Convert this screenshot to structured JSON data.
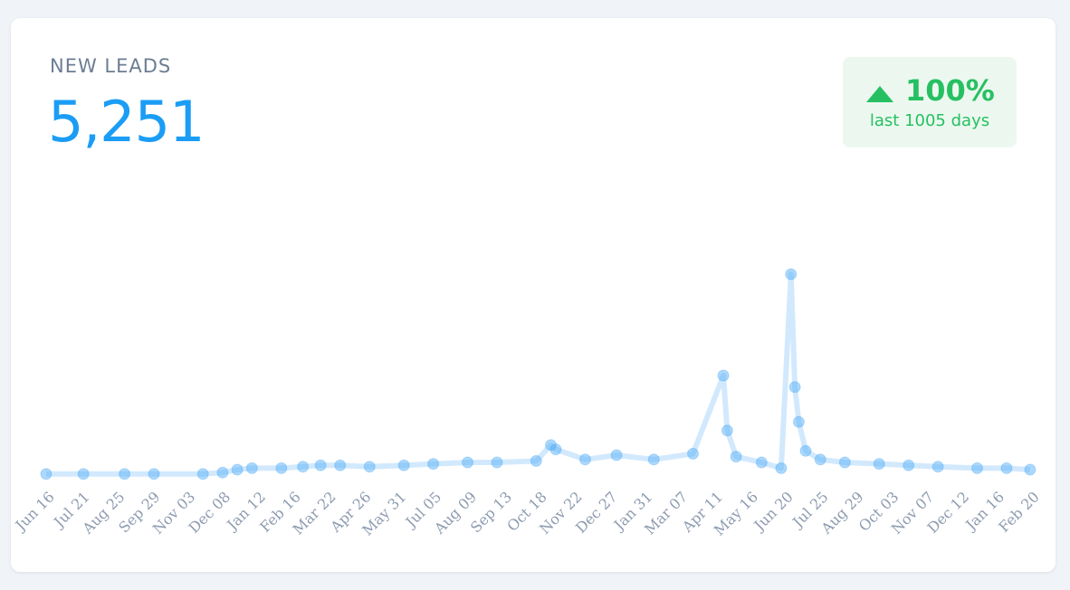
{
  "card": {
    "title": "NEW LEADS",
    "value": "5,251"
  },
  "badge": {
    "percent": "100%",
    "direction": "up",
    "subtitle": "last 1005 days",
    "color": "#26c062",
    "background": "#ecf8ef"
  },
  "colors": {
    "accent": "#1b9df5",
    "point": "#4aa8f7",
    "title": "#6c7d93",
    "tick": "#8d9bb0"
  },
  "chart_data": {
    "type": "scatter",
    "xlabel": "",
    "ylabel": "",
    "series": [
      {
        "values": [
          [
            0,
            2
          ],
          [
            38,
            2
          ],
          [
            80,
            2
          ],
          [
            110,
            2
          ],
          [
            160,
            2
          ],
          [
            180,
            3
          ],
          [
            195,
            5
          ],
          [
            210,
            6
          ],
          [
            240,
            6
          ],
          [
            262,
            7
          ],
          [
            280,
            8
          ],
          [
            300,
            8
          ],
          [
            330,
            7
          ],
          [
            365,
            8
          ],
          [
            395,
            9
          ],
          [
            430,
            10
          ],
          [
            460,
            10
          ],
          [
            500,
            11
          ],
          [
            515,
            22
          ],
          [
            520,
            19
          ],
          [
            550,
            12
          ],
          [
            582,
            15
          ],
          [
            620,
            12
          ],
          [
            660,
            16
          ],
          [
            691,
            70
          ],
          [
            695,
            32
          ],
          [
            704,
            14
          ],
          [
            730,
            10
          ],
          [
            750,
            6
          ],
          [
            760,
            140
          ],
          [
            764,
            62
          ],
          [
            768,
            38
          ],
          [
            775,
            18
          ],
          [
            790,
            12
          ],
          [
            815,
            10
          ],
          [
            850,
            9
          ],
          [
            880,
            8
          ],
          [
            910,
            7
          ],
          [
            950,
            6
          ],
          [
            980,
            6
          ],
          [
            1004,
            5
          ]
        ]
      }
    ],
    "x_ticks": [
      "Jun 16",
      "Jul 21",
      "Aug 25",
      "Sep 29",
      "Nov 03",
      "Dec 08",
      "Jan 12",
      "Feb 16",
      "Mar 22",
      "Apr 26",
      "May 31",
      "Jul 05",
      "Aug 09",
      "Sep 13",
      "Oct 18",
      "Nov 22",
      "Dec 27",
      "Jan 31",
      "Mar 07",
      "Apr 11",
      "May 16",
      "Jun 20",
      "Jul 25",
      "Aug 29",
      "Oct 03",
      "Nov 07",
      "Dec 12",
      "Jan 16",
      "Feb 20"
    ],
    "xlim": [
      0,
      1005
    ],
    "ylim": [
      0,
      140
    ],
    "grid": false,
    "legend": "none"
  }
}
